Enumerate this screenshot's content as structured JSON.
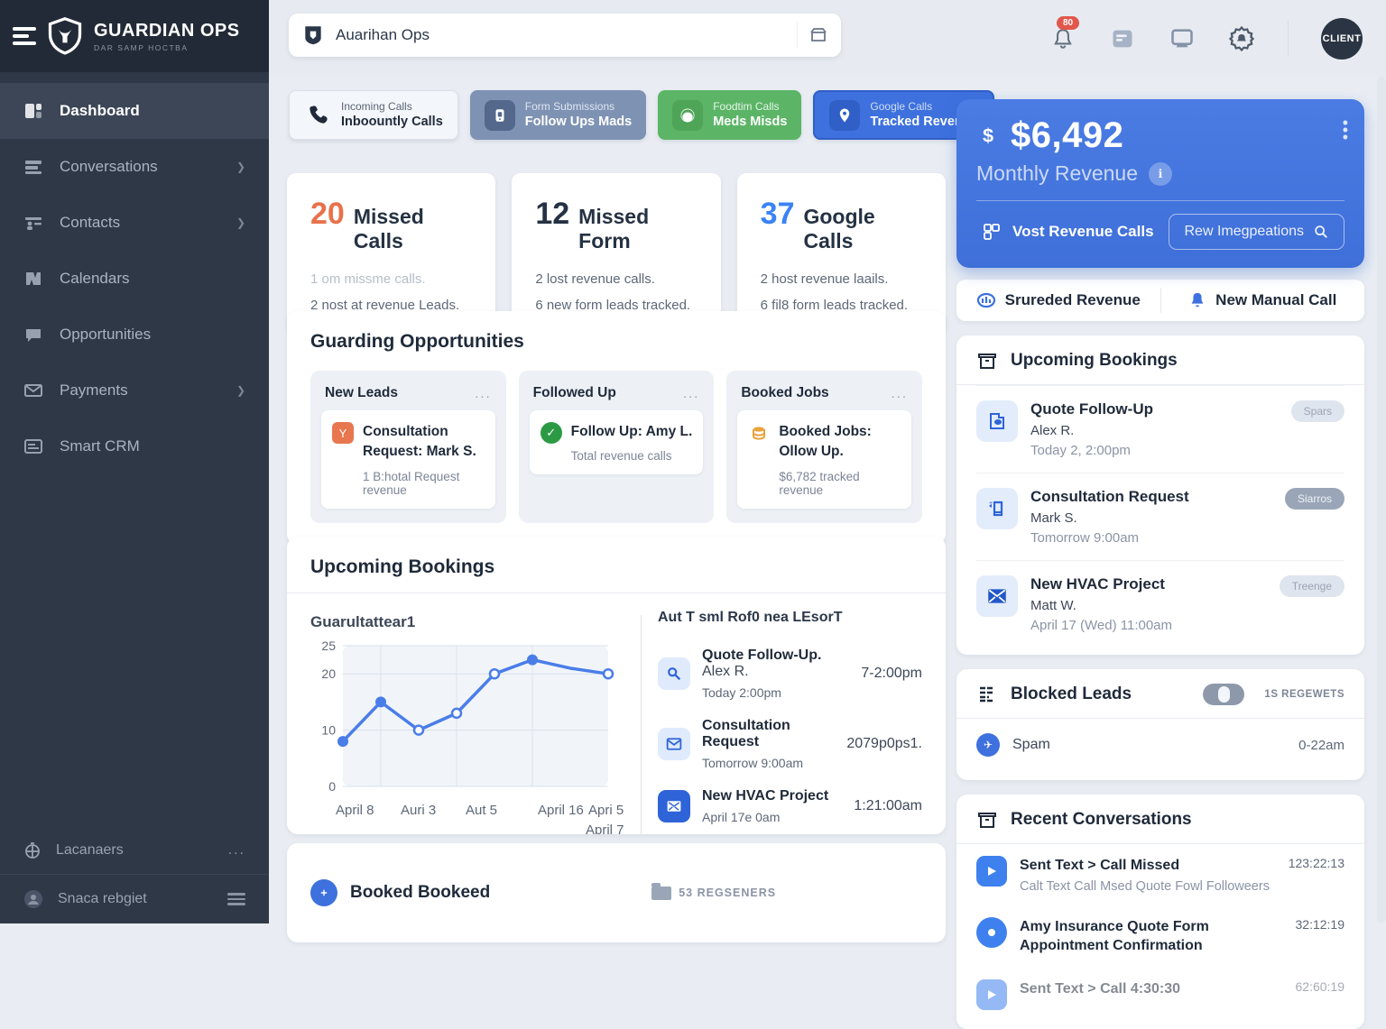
{
  "sidebar": {
    "logo_title": "GUARDIAN OPS",
    "logo_subtitle": "DAR SAMP HOCTBA",
    "items": [
      {
        "label": "Dashboard",
        "active": true,
        "chevron": false
      },
      {
        "label": "Conversations",
        "active": false,
        "chevron": true
      },
      {
        "label": "Contacts",
        "active": false,
        "chevron": true
      },
      {
        "label": "Calendars",
        "active": false,
        "chevron": false
      },
      {
        "label": "Opportunities",
        "active": false,
        "chevron": false
      },
      {
        "label": "Payments",
        "active": false,
        "chevron": true
      },
      {
        "label": "Smart CRM",
        "active": false,
        "chevron": false
      }
    ],
    "footer_items": [
      {
        "label": "Lacanaers",
        "more": "..."
      },
      {
        "label": "Snaca rebgiet"
      }
    ]
  },
  "header": {
    "search_value": "Auarihan Ops",
    "notification_badge": "80",
    "avatar_label": "CLIENT"
  },
  "pills": [
    {
      "top": "Incoming Calls",
      "bottom": "Inboountly Calls"
    },
    {
      "top": "Form Submissions",
      "bottom": "Follow Ups Mads"
    },
    {
      "top": "Foodtim Calls",
      "bottom": "Meds Misds"
    },
    {
      "top": "Google Calls",
      "bottom": "Tracked Revenue"
    }
  ],
  "stats": [
    {
      "value": "20",
      "label": "Missed Calls",
      "line1": "1 om missme calls.",
      "line2": "2 nost at revenue Leads."
    },
    {
      "value": "12",
      "label": "Missed Form",
      "line1": "2 lost revenue calls.",
      "line2": "6 new form leads tracked."
    },
    {
      "value": "37",
      "label": "Google Calls",
      "line1": "2 host revenue laails.",
      "line2": "6 fil8 form leads tracked."
    }
  ],
  "stat_colors": {
    "orange": "#e8714a",
    "dark": "#253243",
    "blue": "#3b82f6"
  },
  "opportunities": {
    "title": "Guarding Opportunities",
    "columns": [
      {
        "title": "New Leads",
        "menu": "...",
        "card_title": "Consultation Request: Mark S.",
        "card_sub": "1 B:hotal Request revenue"
      },
      {
        "title": "Followed Up",
        "menu": "...",
        "card_title": "Follow Up: Amy L.",
        "card_sub": "Total revenue calls"
      },
      {
        "title": "Booked Jobs",
        "menu": "...",
        "card_title": "Booked Jobs: Ollow Up.",
        "card_sub": "$6,782 tracked revenue"
      }
    ]
  },
  "bookings_section": {
    "title": "Upcoming Bookings",
    "chart_subtitle": "Guarultattear1",
    "list_heading": "Aut T sml Rof0 nea LEsorT",
    "items": [
      {
        "title": "Quote Follow-Up.",
        "name": "Alex R.",
        "sub": "Today 2:00pm",
        "time": "7-2:00pm"
      },
      {
        "title": "Consultation Request",
        "name": "",
        "sub": "Tomorrow 9:00am",
        "time": "2079p0ps1."
      },
      {
        "title": "New HVAC Project",
        "name": "",
        "sub": "April 17e 0am",
        "time": "1:21:00am"
      }
    ]
  },
  "chart_data": {
    "type": "line",
    "title": "Upcoming Bookings",
    "subtitle": "Guarultattear1",
    "x_tick_labels": [
      "April 8",
      "Auri 3",
      "Aut 5",
      "April 16",
      "Apri 5",
      "April 7"
    ],
    "values": [
      8,
      15,
      10,
      13,
      20,
      22.5,
      21,
      20
    ],
    "markers": [
      "filled",
      "filled",
      "hollow",
      "hollow",
      "hollow",
      "filled",
      "none",
      "hollow"
    ],
    "ylim": [
      0,
      25
    ],
    "yticks": [
      25,
      20,
      10,
      0
    ],
    "grid": true,
    "line_color": "#4a7de8",
    "legend_position": "none"
  },
  "bottom_bar": {
    "label": "Booked Bookeed",
    "right": "53 REGSENERS"
  },
  "revenue_card": {
    "amount": "$6,492",
    "label": "Monthly Revenue",
    "btn1": "Vost Revenue Calls",
    "btn2": "Rew Imegpeations",
    "accent": "#3f6fd8"
  },
  "action_bar": {
    "left": "Srureded Revenue",
    "right": "New Manual Call"
  },
  "right_bookings": {
    "title": "Upcoming Bookings",
    "items": [
      {
        "title": "Quote Follow-Up",
        "name": "Alex R.",
        "time": "Today 2, 2:00pm",
        "badge": "Spars",
        "badge_dark": false
      },
      {
        "title": "Consultation Request",
        "name": "Mark S.",
        "time": "Tomorrow 9:00am",
        "badge": "Siarros",
        "badge_dark": true
      },
      {
        "title": "New HVAC Project",
        "name": "Matt W.",
        "time": "April 17 (Wed) 11:00am",
        "badge": "Treenge",
        "badge_dark": false
      }
    ]
  },
  "blocked_leads": {
    "title": "Blocked Leads",
    "counter": "1S REGEWETS",
    "item": {
      "label": "Spam",
      "time": "0-22am"
    }
  },
  "conversations": {
    "title": "Recent Conversations",
    "items": [
      {
        "title": "Sent Text > Call Missed",
        "sub": "Calt Text Call Msed Quote Fowl Followeers",
        "time": "123:22:13"
      },
      {
        "title": "Amy Insurance Quote Form Appointment Confirmation",
        "sub": "",
        "time": "32:12:19"
      },
      {
        "title": "Sent Text > Call 4:30:30",
        "sub": "",
        "time": "62:60:19"
      }
    ]
  }
}
